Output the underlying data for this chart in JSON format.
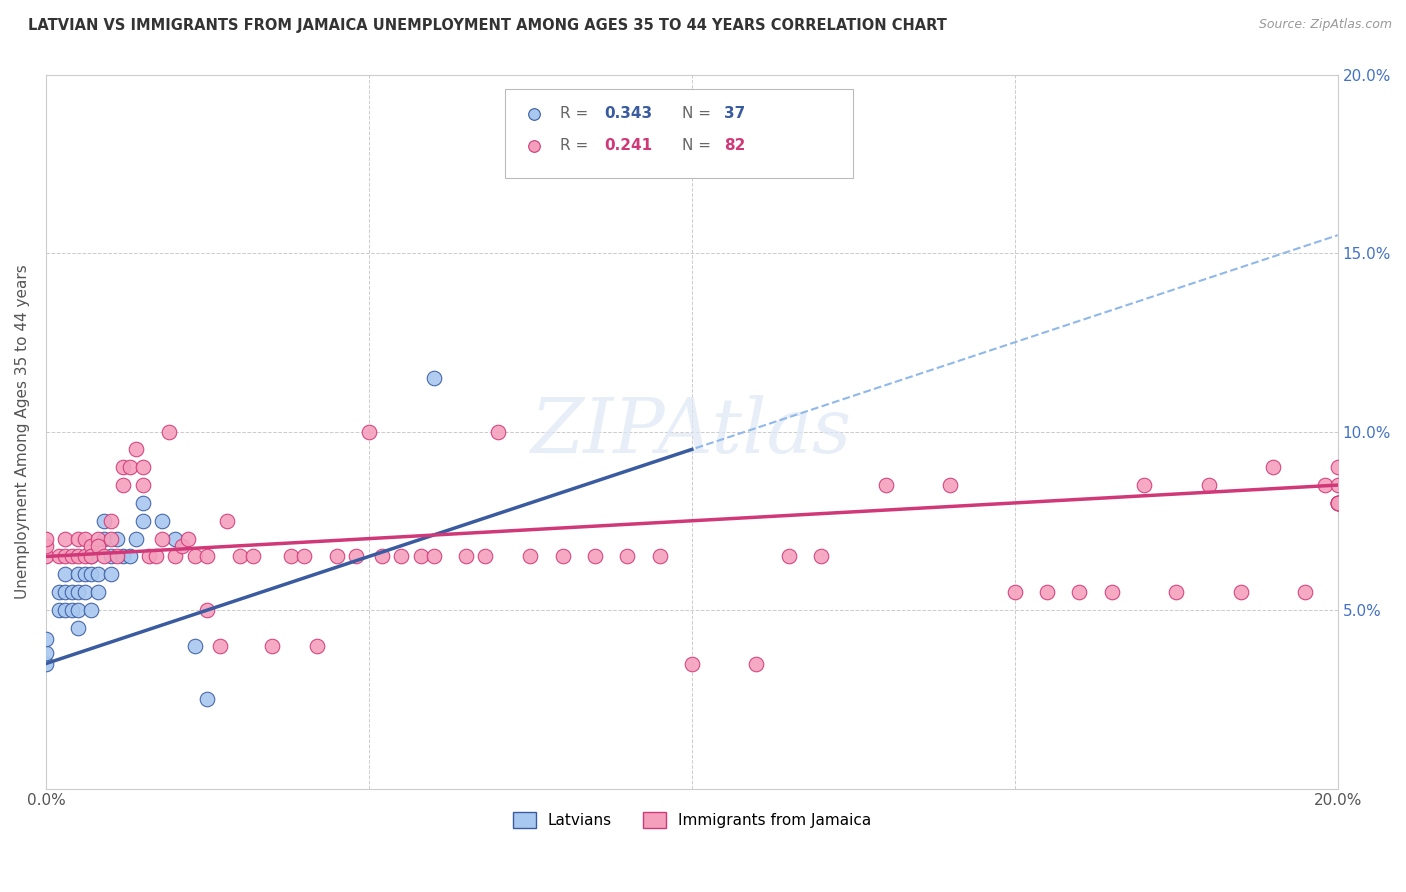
{
  "title": "LATVIAN VS IMMIGRANTS FROM JAMAICA UNEMPLOYMENT AMONG AGES 35 TO 44 YEARS CORRELATION CHART",
  "source": "Source: ZipAtlas.com",
  "ylabel": "Unemployment Among Ages 35 to 44 years",
  "xlim": [
    0.0,
    0.2
  ],
  "ylim": [
    0.0,
    0.2
  ],
  "series1_label": "Latvians",
  "series2_label": "Immigrants from Jamaica",
  "color1": "#A8C8F0",
  "color2": "#F4A0BC",
  "trendline1_color": "#3A5BA0",
  "trendline2_color": "#D03878",
  "trendline1_dashed_color": "#90B8E8",
  "r1": "0.343",
  "n1": "37",
  "r2": "0.241",
  "n2": "82",
  "latvians_x": [
    0.0,
    0.0,
    0.0,
    0.002,
    0.002,
    0.003,
    0.003,
    0.003,
    0.004,
    0.004,
    0.005,
    0.005,
    0.005,
    0.005,
    0.006,
    0.006,
    0.007,
    0.007,
    0.007,
    0.008,
    0.008,
    0.009,
    0.009,
    0.01,
    0.01,
    0.011,
    0.012,
    0.013,
    0.014,
    0.015,
    0.015,
    0.018,
    0.02,
    0.023,
    0.025,
    0.06,
    0.1
  ],
  "latvians_y": [
    0.035,
    0.038,
    0.042,
    0.05,
    0.055,
    0.05,
    0.055,
    0.06,
    0.05,
    0.055,
    0.045,
    0.05,
    0.055,
    0.06,
    0.055,
    0.06,
    0.05,
    0.06,
    0.065,
    0.055,
    0.06,
    0.07,
    0.075,
    0.06,
    0.065,
    0.07,
    0.065,
    0.065,
    0.07,
    0.075,
    0.08,
    0.075,
    0.07,
    0.04,
    0.025,
    0.115,
    0.175
  ],
  "jamaica_x": [
    0.0,
    0.0,
    0.0,
    0.002,
    0.003,
    0.003,
    0.004,
    0.005,
    0.005,
    0.006,
    0.006,
    0.007,
    0.007,
    0.008,
    0.008,
    0.009,
    0.01,
    0.01,
    0.011,
    0.012,
    0.012,
    0.013,
    0.014,
    0.015,
    0.015,
    0.016,
    0.017,
    0.018,
    0.019,
    0.02,
    0.021,
    0.022,
    0.023,
    0.025,
    0.025,
    0.027,
    0.028,
    0.03,
    0.032,
    0.035,
    0.038,
    0.04,
    0.042,
    0.045,
    0.048,
    0.05,
    0.052,
    0.055,
    0.058,
    0.06,
    0.065,
    0.068,
    0.07,
    0.075,
    0.08,
    0.085,
    0.09,
    0.095,
    0.1,
    0.11,
    0.115,
    0.12,
    0.13,
    0.14,
    0.15,
    0.155,
    0.16,
    0.165,
    0.17,
    0.175,
    0.18,
    0.185,
    0.19,
    0.195,
    0.198,
    0.2,
    0.2,
    0.2,
    0.2,
    0.2,
    0.2,
    0.2
  ],
  "jamaica_y": [
    0.065,
    0.068,
    0.07,
    0.065,
    0.065,
    0.07,
    0.065,
    0.07,
    0.065,
    0.07,
    0.065,
    0.068,
    0.065,
    0.07,
    0.068,
    0.065,
    0.075,
    0.07,
    0.065,
    0.085,
    0.09,
    0.09,
    0.095,
    0.09,
    0.085,
    0.065,
    0.065,
    0.07,
    0.1,
    0.065,
    0.068,
    0.07,
    0.065,
    0.065,
    0.05,
    0.04,
    0.075,
    0.065,
    0.065,
    0.04,
    0.065,
    0.065,
    0.04,
    0.065,
    0.065,
    0.1,
    0.065,
    0.065,
    0.065,
    0.065,
    0.065,
    0.065,
    0.1,
    0.065,
    0.065,
    0.065,
    0.065,
    0.065,
    0.035,
    0.035,
    0.065,
    0.065,
    0.085,
    0.085,
    0.055,
    0.055,
    0.055,
    0.055,
    0.085,
    0.055,
    0.085,
    0.055,
    0.09,
    0.055,
    0.085,
    0.085,
    0.08,
    0.08,
    0.08,
    0.09,
    0.08,
    0.08
  ]
}
